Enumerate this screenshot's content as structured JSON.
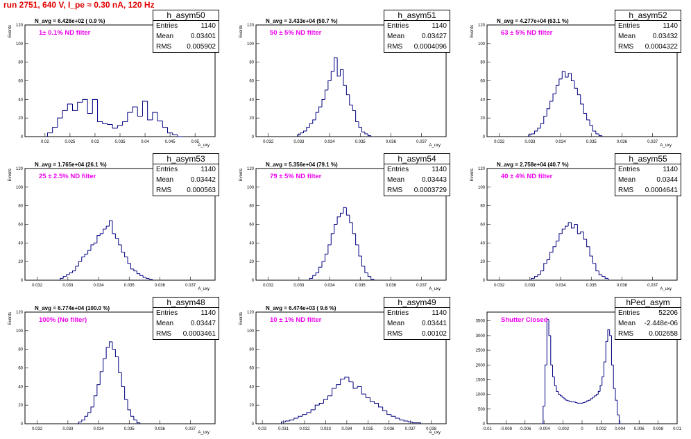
{
  "title": "run 2751,   640 V, I_pe ≈ 0.30 nA, 120 Hz",
  "chart_data": [
    {
      "type": "histogram",
      "name": "h_asym50",
      "navg": "N_avg = 6.426e+02 ( 0.9 %)",
      "filter": "1± 0.1% ND filter",
      "stats": {
        "Entries": "1140",
        "Mean": "0.03401",
        "RMS": "0.005902"
      },
      "ylabel": "Events",
      "xlabel": "A_uxy",
      "xlim": [
        0.016,
        0.054
      ],
      "ylim": [
        0,
        120
      ],
      "xticks": [
        "0.02",
        "0.025",
        "0.03",
        "0.035",
        "0.04",
        "0.045",
        "0.05"
      ],
      "xtick_values": [
        0.02,
        0.025,
        0.03,
        0.035,
        0.04,
        0.045,
        0.05
      ],
      "yticks": [
        0,
        20,
        40,
        60,
        80,
        100,
        120
      ],
      "x": [
        0.021,
        0.022,
        0.023,
        0.024,
        0.025,
        0.026,
        0.027,
        0.028,
        0.029,
        0.03,
        0.031,
        0.032,
        0.033,
        0.034,
        0.035,
        0.036,
        0.037,
        0.038,
        0.039,
        0.04,
        0.041,
        0.042,
        0.043,
        0.044,
        0.045,
        0.046,
        0.047
      ],
      "values": [
        4,
        10,
        20,
        28,
        35,
        28,
        37,
        40,
        25,
        40,
        16,
        14,
        13,
        9,
        12,
        16,
        26,
        32,
        22,
        38,
        18,
        26,
        17,
        10,
        4,
        2,
        0
      ]
    },
    {
      "type": "histogram",
      "name": "h_asym51",
      "navg": "N_avg = 3.433e+04 (50.7 %)",
      "filter": "50 ± 5% ND filter",
      "stats": {
        "Entries": "1140",
        "Mean": "0.03427",
        "RMS": "0.0004096"
      },
      "ylabel": "Events",
      "xlabel": "A_uxy",
      "xlim": [
        0.0316,
        0.0378
      ],
      "ylim": [
        0,
        120
      ],
      "xticks": [
        "0.032",
        "0.033",
        "0.034",
        "0.035",
        "0.036",
        "0.037"
      ],
      "xtick_values": [
        0.032,
        0.033,
        0.034,
        0.035,
        0.036,
        0.037
      ],
      "yticks": [
        0,
        20,
        40,
        60,
        80,
        100,
        120
      ],
      "x": [
        0.033,
        0.0331,
        0.0332,
        0.0333,
        0.0334,
        0.0335,
        0.0336,
        0.0337,
        0.0338,
        0.0339,
        0.034,
        0.0341,
        0.0342,
        0.0343,
        0.0344,
        0.0345,
        0.0346,
        0.0347,
        0.0348,
        0.0349,
        0.035,
        0.0351,
        0.0352,
        0.0353
      ],
      "values": [
        2,
        4,
        6,
        10,
        14,
        18,
        26,
        32,
        40,
        50,
        60,
        70,
        85,
        65,
        72,
        55,
        45,
        34,
        28,
        16,
        10,
        5,
        3,
        1
      ]
    },
    {
      "type": "histogram",
      "name": "h_asym52",
      "navg": "N_avg = 4.277e+04 (63.1 %)",
      "filter": "63 ± 5% ND filter",
      "stats": {
        "Entries": "1140",
        "Mean": "0.03432",
        "RMS": "0.0004322"
      },
      "ylabel": "Events",
      "xlabel": "A_uxy",
      "xlim": [
        0.0316,
        0.0378
      ],
      "ylim": [
        0,
        120
      ],
      "xticks": [
        "0.032",
        "0.033",
        "0.034",
        "0.035",
        "0.036",
        "0.037"
      ],
      "xtick_values": [
        0.032,
        0.033,
        0.034,
        0.035,
        0.036,
        0.037
      ],
      "yticks": [
        0,
        20,
        40,
        60,
        80,
        100,
        120
      ],
      "x": [
        0.033,
        0.0331,
        0.0332,
        0.0333,
        0.0334,
        0.0335,
        0.0336,
        0.0337,
        0.0338,
        0.0339,
        0.034,
        0.0341,
        0.0342,
        0.0343,
        0.0344,
        0.0345,
        0.0346,
        0.0347,
        0.0348,
        0.0349,
        0.035,
        0.0351,
        0.0352,
        0.0353
      ],
      "values": [
        2,
        3,
        6,
        9,
        14,
        22,
        30,
        38,
        46,
        55,
        62,
        70,
        64,
        68,
        60,
        52,
        45,
        35,
        25,
        18,
        12,
        6,
        3,
        1
      ]
    },
    {
      "type": "histogram",
      "name": "h_asym53",
      "navg": "N_avg = 1.765e+04 (26.1 %)",
      "filter": "25 ± 2.5% ND filter",
      "stats": {
        "Entries": "1140",
        "Mean": "0.03442",
        "RMS": "0.000563"
      },
      "ylabel": "Events",
      "xlabel": "A_uxy",
      "xlim": [
        0.0316,
        0.0378
      ],
      "ylim": [
        0,
        120
      ],
      "xticks": [
        "0.032",
        "0.033",
        "0.034",
        "0.035",
        "0.036",
        "0.037"
      ],
      "xtick_values": [
        0.032,
        0.033,
        0.034,
        0.035,
        0.036,
        0.037
      ],
      "yticks": [
        0,
        20,
        40,
        60,
        80,
        100,
        120
      ],
      "x": [
        0.0328,
        0.0329,
        0.033,
        0.0331,
        0.0332,
        0.0333,
        0.0334,
        0.0335,
        0.0336,
        0.0337,
        0.0338,
        0.0339,
        0.034,
        0.0341,
        0.0342,
        0.0343,
        0.0344,
        0.0345,
        0.0346,
        0.0347,
        0.0348,
        0.0349,
        0.035,
        0.0351,
        0.0352,
        0.0353,
        0.0354,
        0.0355,
        0.0356,
        0.0357
      ],
      "values": [
        2,
        4,
        6,
        8,
        10,
        15,
        20,
        25,
        28,
        32,
        38,
        40,
        48,
        50,
        55,
        58,
        64,
        50,
        45,
        38,
        30,
        25,
        18,
        12,
        10,
        7,
        5,
        3,
        2,
        1
      ]
    },
    {
      "type": "histogram",
      "name": "h_asym54",
      "navg": "N_avg = 5.356e+04 (79.1 %)",
      "filter": "79 ± 5% ND filter",
      "stats": {
        "Entries": "1140",
        "Mean": "0.03443",
        "RMS": "0.0003729"
      },
      "ylabel": "Events",
      "xlabel": "A_uxy",
      "xlim": [
        0.0316,
        0.0378
      ],
      "ylim": [
        0,
        120
      ],
      "xticks": [
        "0.032",
        "0.033",
        "0.034",
        "0.035",
        "0.036",
        "0.037"
      ],
      "xtick_values": [
        0.032,
        0.033,
        0.034,
        0.035,
        0.036,
        0.037
      ],
      "yticks": [
        0,
        20,
        40,
        60,
        80,
        100,
        120
      ],
      "x": [
        0.0334,
        0.0335,
        0.0336,
        0.0337,
        0.0338,
        0.0339,
        0.034,
        0.0341,
        0.0342,
        0.0343,
        0.0344,
        0.0345,
        0.0346,
        0.0347,
        0.0348,
        0.0349,
        0.035,
        0.0351,
        0.0352,
        0.0353,
        0.0354
      ],
      "values": [
        2,
        5,
        8,
        14,
        20,
        28,
        38,
        50,
        60,
        68,
        72,
        78,
        70,
        62,
        50,
        38,
        26,
        15,
        8,
        4,
        1
      ]
    },
    {
      "type": "histogram",
      "name": "h_asym55",
      "navg": "N_avg = 2.758e+04 (40.7 %)",
      "filter": "40 ± 4% ND filter",
      "stats": {
        "Entries": "1140",
        "Mean": "0.0344",
        "RMS": "0.0004641"
      },
      "ylabel": "Events",
      "xlabel": "A_uxy",
      "xlim": [
        0.0316,
        0.0378
      ],
      "ylim": [
        0,
        120
      ],
      "xticks": [
        "0.032",
        "0.033",
        "0.034",
        "0.035",
        "0.036",
        "0.037"
      ],
      "xtick_values": [
        0.032,
        0.033,
        0.034,
        0.035,
        0.036,
        0.037
      ],
      "yticks": [
        0,
        20,
        40,
        60,
        80,
        100,
        120
      ],
      "x": [
        0.0331,
        0.0332,
        0.0333,
        0.0334,
        0.0335,
        0.0336,
        0.0337,
        0.0338,
        0.0339,
        0.034,
        0.0341,
        0.0342,
        0.0343,
        0.0344,
        0.0345,
        0.0346,
        0.0347,
        0.0348,
        0.0349,
        0.035,
        0.0351,
        0.0352,
        0.0353,
        0.0354,
        0.0355
      ],
      "values": [
        2,
        4,
        6,
        10,
        18,
        22,
        30,
        36,
        42,
        50,
        55,
        58,
        62,
        56,
        60,
        50,
        52,
        44,
        36,
        26,
        18,
        10,
        6,
        4,
        2
      ]
    },
    {
      "type": "histogram",
      "name": "h_asym48",
      "navg": "N_avg = 6.774e+04 (100.0 %)",
      "filter": "100% (No filter)",
      "stats": {
        "Entries": "1140",
        "Mean": "0.03447",
        "RMS": "0.0003461"
      },
      "ylabel": "Events",
      "xlabel": "A_uxy",
      "xlim": [
        0.0316,
        0.0378
      ],
      "ylim": [
        0,
        120
      ],
      "xticks": [
        "0.032",
        "0.033",
        "0.034",
        "0.035",
        "0.036",
        "0.037"
      ],
      "xtick_values": [
        0.032,
        0.033,
        0.034,
        0.035,
        0.036,
        0.037
      ],
      "yticks": [
        0,
        20,
        40,
        60,
        80,
        100,
        120
      ],
      "x": [
        0.0334,
        0.0335,
        0.0336,
        0.0337,
        0.0338,
        0.0339,
        0.034,
        0.0341,
        0.0342,
        0.0343,
        0.0344,
        0.0345,
        0.0346,
        0.0347,
        0.0348,
        0.0349,
        0.035,
        0.0351,
        0.0352,
        0.0353
      ],
      "values": [
        2,
        4,
        8,
        12,
        18,
        30,
        42,
        56,
        70,
        82,
        88,
        80,
        72,
        55,
        40,
        26,
        15,
        8,
        4,
        1
      ]
    },
    {
      "type": "histogram",
      "name": "h_asym49",
      "navg": "N_avg = 6.474e+03 ( 9.6 %)",
      "filter": "10 ± 1% ND filter",
      "stats": {
        "Entries": "1140",
        "Mean": "0.03441",
        "RMS": "0.00102"
      },
      "ylabel": "Events",
      "xlabel": "A_uxy",
      "xlim": [
        0.0297,
        0.0387
      ],
      "ylim": [
        0,
        120
      ],
      "xticks": [
        "0.03",
        "0.031",
        "0.032",
        "0.033",
        "0.034",
        "0.035",
        "0.036",
        "0.037",
        "0.038"
      ],
      "xtick_values": [
        0.03,
        0.031,
        0.032,
        0.033,
        0.034,
        0.035,
        0.036,
        0.037,
        0.038
      ],
      "yticks": [
        0,
        20,
        40,
        60,
        80,
        100,
        120
      ],
      "x": [
        0.031,
        0.0312,
        0.0314,
        0.0316,
        0.0318,
        0.032,
        0.0322,
        0.0324,
        0.0326,
        0.0328,
        0.033,
        0.0332,
        0.0334,
        0.0336,
        0.0338,
        0.034,
        0.0342,
        0.0344,
        0.0346,
        0.0348,
        0.035,
        0.0352,
        0.0354,
        0.0356,
        0.0358,
        0.036,
        0.0362,
        0.0364,
        0.0366,
        0.0368,
        0.037,
        0.0372,
        0.0374
      ],
      "values": [
        2,
        3,
        4,
        6,
        8,
        10,
        12,
        15,
        20,
        22,
        26,
        30,
        38,
        42,
        48,
        50,
        45,
        38,
        40,
        32,
        28,
        24,
        22,
        18,
        14,
        10,
        8,
        6,
        4,
        3,
        2,
        1,
        1
      ]
    },
    {
      "type": "histogram",
      "name": "hPed_asym",
      "navg": "",
      "filter": "Shutter Closed",
      "stats": {
        "Entries": "52206",
        "Mean": "-2.448e-06",
        "RMS": "0.002658"
      },
      "ylabel": "",
      "xlabel": "",
      "xlim": [
        -0.01,
        0.01
      ],
      "ylim": [
        0,
        3800
      ],
      "xticks": [
        "-0.01",
        "-0.008",
        "-0.006",
        "-0.004",
        "-0.002",
        "0",
        "0.002",
        "0.004",
        "0.006",
        "0.008",
        "0.01"
      ],
      "xtick_values": [
        -0.01,
        -0.008,
        -0.006,
        -0.004,
        -0.002,
        0,
        0.002,
        0.004,
        0.006,
        0.008,
        0.01
      ],
      "yticks": [
        0,
        500,
        1000,
        1500,
        2000,
        2500,
        3000,
        3500
      ],
      "x": [
        -0.0042,
        -0.004,
        -0.0038,
        -0.0036,
        -0.0034,
        -0.0032,
        -0.003,
        -0.0028,
        -0.0026,
        -0.0024,
        -0.0022,
        -0.002,
        -0.0018,
        -0.0016,
        -0.0014,
        -0.0012,
        -0.001,
        -0.0008,
        -0.0006,
        -0.0004,
        -0.0002,
        0.0,
        0.0002,
        0.0004,
        0.0006,
        0.0008,
        0.001,
        0.0012,
        0.0014,
        0.0016,
        0.0018,
        0.002,
        0.0022,
        0.0024,
        0.0026,
        0.0028,
        0.003,
        0.0032,
        0.0034,
        0.0036,
        0.0038,
        0.004
      ],
      "values": [
        0,
        600,
        2000,
        3550,
        3000,
        2000,
        1600,
        1300,
        1100,
        1000,
        950,
        900,
        850,
        800,
        780,
        760,
        750,
        740,
        720,
        700,
        700,
        700,
        720,
        740,
        780,
        800,
        850,
        900,
        950,
        1000,
        1100,
        1300,
        1600,
        2100,
        2800,
        3200,
        3000,
        2000,
        1200,
        800,
        300,
        0
      ]
    }
  ]
}
